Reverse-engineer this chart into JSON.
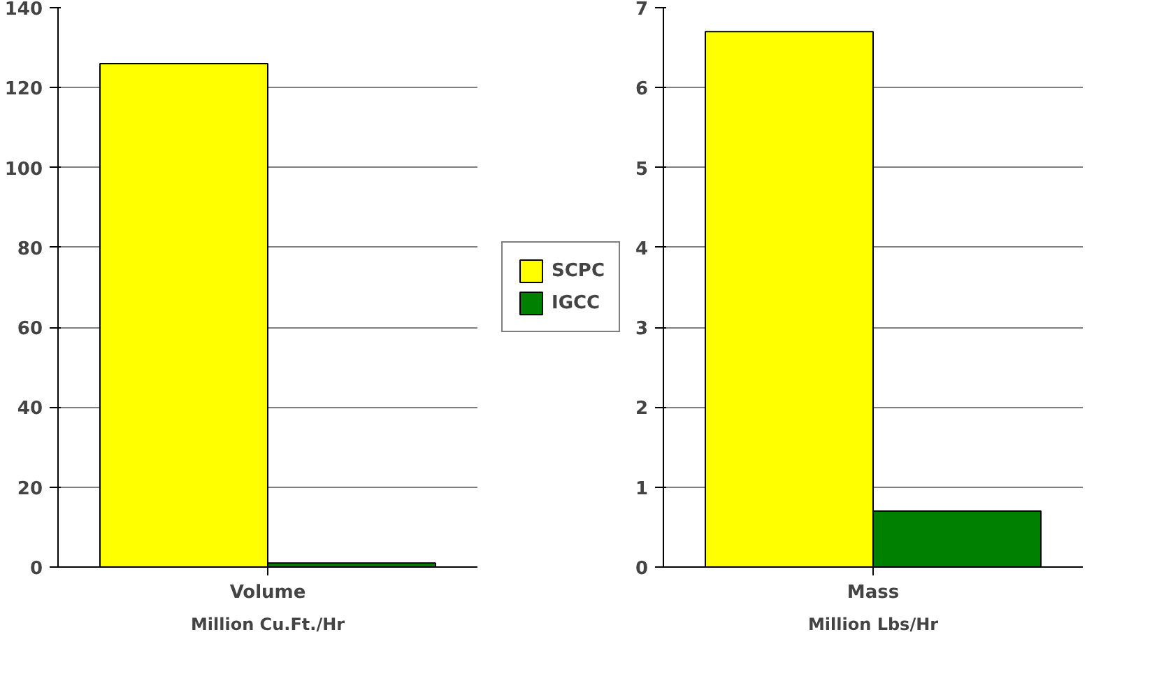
{
  "chart_data": [
    {
      "type": "bar",
      "categories": [
        "Volume"
      ],
      "xlabel": "Million Cu.Ft./Hr",
      "series": [
        {
          "name": "SCPC",
          "color": "#ffff00",
          "values": [
            126
          ]
        },
        {
          "name": "IGCC",
          "color": "#008000",
          "values": [
            1
          ]
        }
      ],
      "ylim": [
        0,
        140
      ],
      "yticks": [
        0,
        20,
        40,
        60,
        80,
        100,
        120,
        140
      ],
      "grid": "y",
      "legend": "right"
    },
    {
      "type": "bar",
      "categories": [
        "Mass"
      ],
      "xlabel": "Million Lbs/Hr",
      "series": [
        {
          "color": "#ffff00",
          "values": [
            6.7
          ]
        },
        {
          "color": "#008000",
          "values": [
            0.7
          ]
        }
      ],
      "ylim": [
        0,
        7
      ],
      "yticks": [
        0,
        1,
        2,
        3,
        4,
        5,
        6,
        7
      ],
      "grid": "y"
    }
  ]
}
